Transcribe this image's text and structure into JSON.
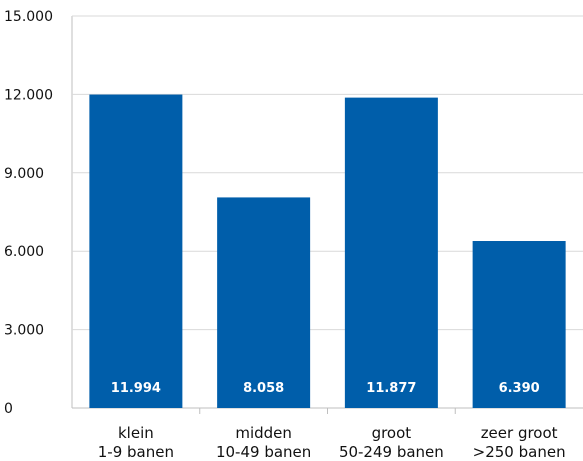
{
  "chart_data": {
    "type": "bar",
    "categories": [
      [
        "klein",
        "1-9 banen"
      ],
      [
        "midden",
        "10-49 banen"
      ],
      [
        "groot",
        "50-249 banen"
      ],
      [
        "zeer groot",
        ">250 banen"
      ]
    ],
    "values": [
      11994,
      8058,
      11877,
      6390
    ],
    "data_labels": [
      "11.994",
      "8.058",
      "11.877",
      "6.390"
    ],
    "y_ticks": [
      0,
      3000,
      6000,
      9000,
      12000,
      15000
    ],
    "y_tick_labels": [
      "0",
      "3.000",
      "6.000",
      "9.000",
      "12.000",
      "15.000"
    ],
    "ylim": [
      0,
      15000
    ],
    "bar_color": "#005eaa",
    "grid": true,
    "title": "",
    "xlabel": "",
    "ylabel": ""
  }
}
